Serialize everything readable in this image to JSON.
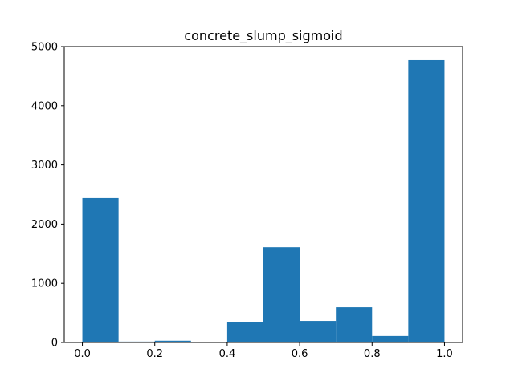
{
  "chart_data": {
    "type": "bar",
    "title": "concrete_slump_sigmoid",
    "xlabel": "",
    "ylabel": "",
    "bin_edges": [
      0.0,
      0.1,
      0.2,
      0.3,
      0.4,
      0.5,
      0.6,
      0.7,
      0.8,
      0.9,
      1.0
    ],
    "values": [
      2440,
      15,
      30,
      0,
      350,
      1610,
      365,
      595,
      110,
      4770
    ],
    "xlim": [
      -0.05,
      1.05
    ],
    "ylim": [
      0,
      5000
    ],
    "xticks": [
      0.0,
      0.2,
      0.4,
      0.6,
      0.8,
      1.0
    ],
    "xtick_labels": [
      "0.0",
      "0.2",
      "0.4",
      "0.6",
      "0.8",
      "1.0"
    ],
    "yticks": [
      0,
      1000,
      2000,
      3000,
      4000,
      5000
    ],
    "ytick_labels": [
      "0",
      "1000",
      "2000",
      "3000",
      "4000",
      "5000"
    ],
    "bar_color": "#1f77b4",
    "grid": false,
    "legend": "none"
  }
}
